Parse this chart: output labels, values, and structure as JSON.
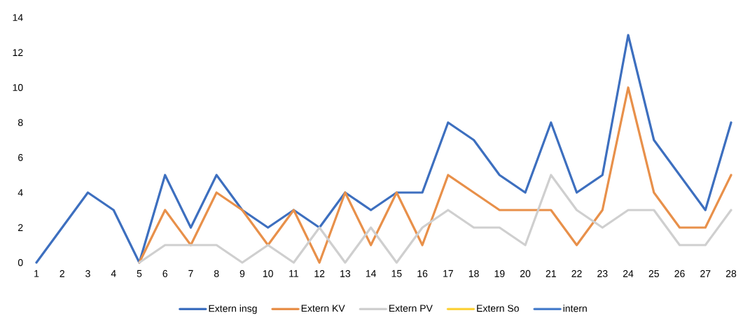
{
  "chart_data": {
    "type": "line",
    "categories": [
      "1",
      "2",
      "3",
      "4",
      "5",
      "6",
      "7",
      "8",
      "9",
      "10",
      "11",
      "12",
      "13",
      "14",
      "15",
      "16",
      "17",
      "18",
      "19",
      "20",
      "21",
      "22",
      "23",
      "24",
      "25",
      "26",
      "27",
      "28"
    ],
    "series": [
      {
        "name": "Extern insg",
        "color": "#3d6fbf",
        "values": [
          0,
          2,
          4,
          3,
          0,
          5,
          2,
          5,
          3,
          2,
          3,
          2,
          4,
          3,
          4,
          4,
          8,
          7,
          5,
          4,
          8,
          4,
          5,
          13,
          7,
          5,
          3,
          8
        ]
      },
      {
        "name": "Extern KV",
        "color": "#e8904a",
        "values": [
          null,
          null,
          null,
          null,
          0,
          3,
          1,
          4,
          3,
          1,
          3,
          0,
          4,
          1,
          4,
          1,
          5,
          4,
          3,
          3,
          3,
          1,
          3,
          10,
          4,
          2,
          2,
          5
        ]
      },
      {
        "name": "Extern PV",
        "color": "#cfcfcf",
        "values": [
          null,
          null,
          null,
          null,
          0,
          1,
          1,
          1,
          0,
          1,
          0,
          2,
          0,
          2,
          0,
          2,
          3,
          2,
          2,
          1,
          5,
          3,
          2,
          3,
          3,
          1,
          1,
          3
        ]
      },
      {
        "name": "Extern So",
        "color": "#fcd23c",
        "values": [
          null,
          null,
          null,
          null,
          null,
          null,
          null,
          null,
          null,
          null,
          null,
          null,
          null,
          null,
          null,
          null,
          null,
          null,
          null,
          null,
          null,
          null,
          null,
          null,
          null,
          null,
          null,
          null
        ]
      },
      {
        "name": "intern",
        "color": "#4a7fcc",
        "values": [
          null,
          null,
          null,
          null,
          null,
          null,
          null,
          null,
          null,
          null,
          null,
          null,
          null,
          null,
          null,
          null,
          null,
          null,
          null,
          null,
          null,
          null,
          null,
          null,
          null,
          null,
          null,
          null
        ]
      }
    ],
    "ylim": [
      0,
      14
    ],
    "yticks": [
      0,
      2,
      4,
      6,
      8,
      10,
      12,
      14
    ],
    "legend": "bottom",
    "marker": "none",
    "line_style": "solid"
  }
}
